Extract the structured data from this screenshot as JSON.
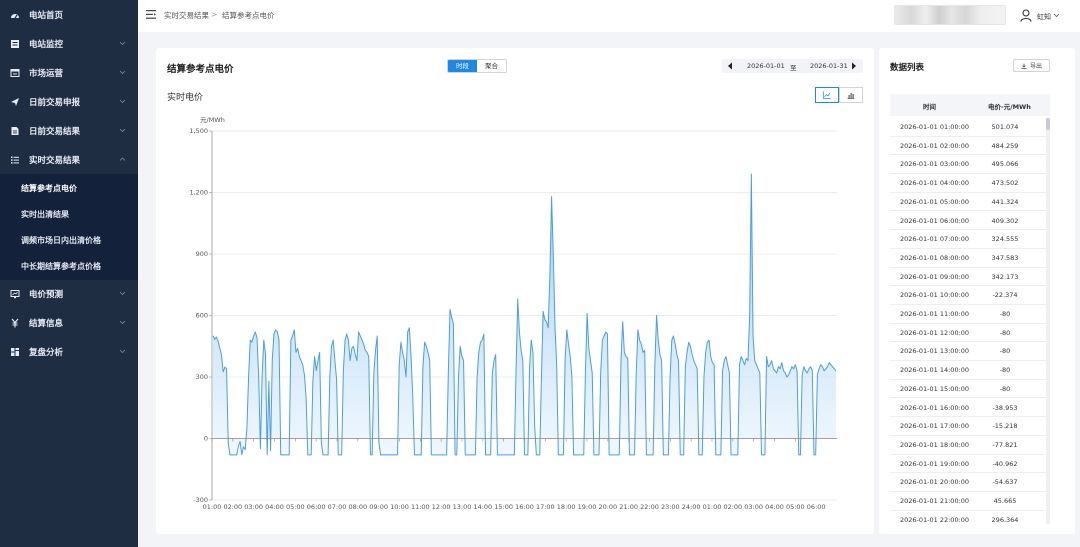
{
  "sidebar": {
    "items": [
      {
        "label": "电站首页",
        "icon": "dashboard-icon",
        "expandable": false
      },
      {
        "label": "电站监控",
        "icon": "monitor-icon",
        "expandable": true
      },
      {
        "label": "市场运营",
        "icon": "market-icon",
        "expandable": true
      },
      {
        "label": "日前交易申报",
        "icon": "send-icon",
        "expandable": true
      },
      {
        "label": "日前交易结果",
        "icon": "document-icon",
        "expandable": true
      },
      {
        "label": "实时交易结果",
        "icon": "list-icon",
        "expandable": true,
        "expanded": true
      },
      {
        "label": "电价预测",
        "icon": "forecast-icon",
        "expandable": true
      },
      {
        "label": "结算信息",
        "icon": "yuan-icon",
        "expandable": true
      },
      {
        "label": "复盘分析",
        "icon": "grid-icon",
        "expandable": true
      }
    ],
    "submenu": [
      {
        "label": "结算参考点电价",
        "active": true
      },
      {
        "label": "实时出清结果",
        "active": false
      },
      {
        "label": "调频市场日内出清价格",
        "active": false
      },
      {
        "label": "中长期结算参考点价格",
        "active": false
      }
    ]
  },
  "header": {
    "breadcrumb": [
      "实时交易结果",
      "结算参考点电价"
    ],
    "breadcrumb_sep": ">",
    "user_name": "虹知"
  },
  "main": {
    "title": "结算参考点电价",
    "toggle": [
      "时段",
      "聚合"
    ],
    "date_start": "2026-01-01",
    "date_sep": "至",
    "date_end": "2026-01-31",
    "subtitle": "实时电价"
  },
  "side": {
    "title": "数据列表",
    "export_label": "导出",
    "columns": [
      "时间",
      "电价-元/MWh"
    ],
    "rows": [
      [
        "2026-01-01 01:00:00",
        "501.074"
      ],
      [
        "2026-01-01 02:00:00",
        "484.259"
      ],
      [
        "2026-01-01 03:00:00",
        "495.066"
      ],
      [
        "2026-01-01 04:00:00",
        "473.502"
      ],
      [
        "2026-01-01 05:00:00",
        "441.324"
      ],
      [
        "2026-01-01 06:00:00",
        "409.302"
      ],
      [
        "2026-01-01 07:00:00",
        "324.555"
      ],
      [
        "2026-01-01 08:00:00",
        "347.583"
      ],
      [
        "2026-01-01 09:00:00",
        "342.173"
      ],
      [
        "2026-01-01 10:00:00",
        "-22.374"
      ],
      [
        "2026-01-01 11:00:00",
        "-80"
      ],
      [
        "2026-01-01 12:00:00",
        "-80"
      ],
      [
        "2026-01-01 13:00:00",
        "-80"
      ],
      [
        "2026-01-01 14:00:00",
        "-80"
      ],
      [
        "2026-01-01 15:00:00",
        "-80"
      ],
      [
        "2026-01-01 16:00:00",
        "-38.953"
      ],
      [
        "2026-01-01 17:00:00",
        "-15.218"
      ],
      [
        "2026-01-01 18:00:00",
        "-77.821"
      ],
      [
        "2026-01-01 19:00:00",
        "-40.962"
      ],
      [
        "2026-01-01 20:00:00",
        "-54.637"
      ],
      [
        "2026-01-01 21:00:00",
        "45.665"
      ],
      [
        "2026-01-01 22:00:00",
        "296.364"
      ]
    ]
  },
  "colors": {
    "sidebar_bg": "#1f2d42",
    "accent": "#1e88e5",
    "series_line": "#4a9fe0"
  },
  "chart_data": {
    "type": "area",
    "ylabel": "元/MWh",
    "ylim": [
      -300,
      1500
    ],
    "yticks": [
      -300,
      0,
      300,
      600,
      900,
      1200,
      1500
    ],
    "ytick_labels": [
      "-300",
      "0",
      "300",
      "600",
      "900",
      "1,200",
      "1,500"
    ],
    "xtick_labels": [
      "01:00",
      "02:00",
      "03:00",
      "04:00",
      "05:00",
      "06:00",
      "07:00",
      "08:00",
      "09:00",
      "10:00",
      "11:00",
      "12:00",
      "13:00",
      "14:00",
      "15:00",
      "16:00",
      "17:00",
      "18:00",
      "19:00",
      "20:00",
      "21:00",
      "22:00",
      "23:00",
      "24:00",
      "01:00",
      "02:00",
      "03:00",
      "04:00",
      "05:00",
      "06:00"
    ],
    "grid": true,
    "series": [
      {
        "values": [
          501,
          484,
          495,
          474,
          441,
          409,
          325,
          348,
          342,
          -22,
          -80,
          -80,
          -80,
          -80,
          -80,
          -39,
          -15,
          -78,
          -41,
          -55,
          46,
          296,
          480,
          470,
          500,
          520,
          490,
          300,
          -50,
          300,
          480,
          410,
          -80,
          280,
          -60,
          380,
          510,
          530,
          520,
          480,
          -80,
          -80,
          -80,
          -80,
          -80,
          -80,
          480,
          500,
          530,
          420,
          440,
          400,
          380,
          360,
          310,
          200,
          -80,
          -80,
          -80,
          280,
          400,
          330,
          380,
          420,
          -20,
          -80,
          -80,
          -80,
          -80,
          300,
          450,
          480,
          380,
          290,
          -80,
          -80,
          -80,
          330,
          480,
          510,
          480,
          380,
          440,
          450,
          410,
          380,
          520,
          500,
          480,
          460,
          430,
          420,
          400,
          -80,
          -80,
          320,
          430,
          500,
          -20,
          -80,
          -80,
          -80,
          -80,
          -80,
          -80,
          -80,
          -80,
          -80,
          -80,
          -80,
          360,
          470,
          420,
          380,
          300,
          520,
          540,
          400,
          200,
          -80,
          -80,
          -80,
          -80,
          -80,
          350,
          470,
          450,
          420,
          380,
          -80,
          -80,
          -80,
          -80,
          -80,
          -80,
          -80,
          -80,
          -80,
          -80,
          320,
          630,
          590,
          560,
          -80,
          -80,
          300,
          450,
          400,
          380,
          -80,
          -80,
          -80,
          -80,
          -80,
          -80,
          -80,
          300,
          420,
          470,
          480,
          510,
          -80,
          -80,
          -80,
          -80,
          320,
          380,
          410,
          -80,
          -80,
          -80,
          -80,
          -80,
          -80,
          -80,
          -80,
          -80,
          -80,
          -80,
          330,
          680,
          520,
          430,
          380,
          -80,
          -80,
          -80,
          350,
          480,
          420,
          60,
          -80,
          -80,
          -80,
          300,
          620,
          580,
          570,
          540,
          800,
          1180,
          900,
          550,
          360,
          -80,
          -80,
          -80,
          -80,
          390,
          530,
          460,
          400,
          300,
          -80,
          -80,
          -80,
          -80,
          -80,
          -80,
          -80,
          330,
          610,
          440,
          380,
          320,
          -80,
          -80,
          -80,
          -80,
          320,
          480,
          500,
          520,
          510,
          -80,
          -80,
          -80,
          -80,
          -80,
          -80,
          -80,
          380,
          570,
          420,
          400,
          390,
          -80,
          -80,
          -80,
          -80,
          320,
          530,
          480,
          460,
          420,
          430,
          -80,
          -80,
          -80,
          -80,
          -80,
          360,
          600,
          480,
          410,
          380,
          -80,
          -80,
          -80,
          -80,
          300,
          480,
          500,
          460,
          410,
          380,
          -80,
          -80,
          -80,
          350,
          420,
          470,
          450,
          410,
          380,
          360,
          340,
          -80,
          -80,
          -80,
          300,
          420,
          470,
          480,
          400,
          370,
          360,
          -80,
          -80,
          -80,
          -80,
          330,
          380,
          400,
          360,
          320,
          -80,
          -80,
          -80,
          -80,
          -80,
          360,
          400,
          380,
          360,
          390,
          380,
          600,
          1290,
          500,
          380,
          360,
          340,
          320,
          -80,
          -80,
          -80,
          400,
          350,
          360,
          380,
          340,
          330,
          320,
          350,
          340,
          370,
          330,
          320,
          300,
          310,
          330,
          350,
          340,
          360,
          330,
          -80,
          -80,
          310,
          350,
          330,
          320,
          340,
          350,
          330,
          -80,
          -80,
          310,
          340,
          360,
          350,
          330,
          340,
          350,
          370,
          360,
          350,
          340,
          330
        ]
      }
    ]
  }
}
